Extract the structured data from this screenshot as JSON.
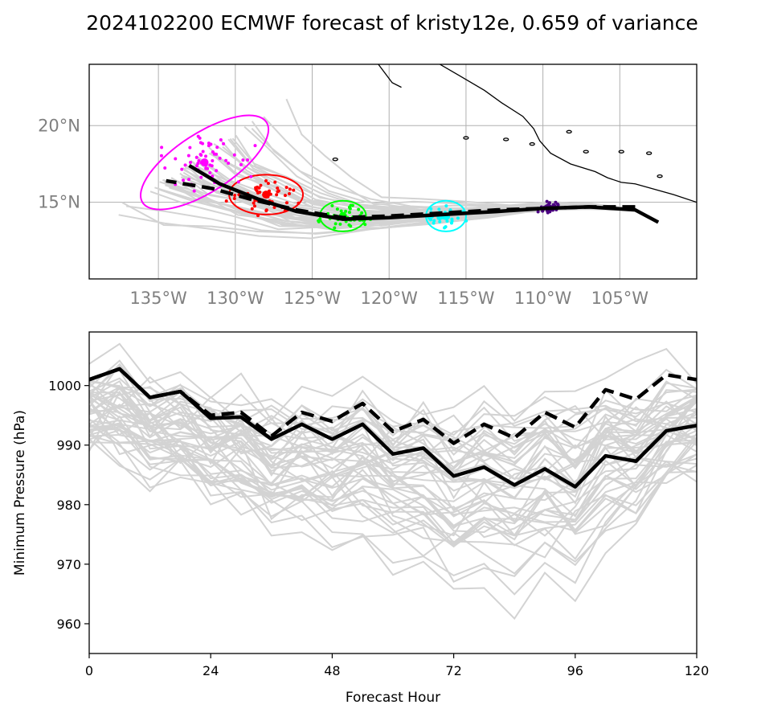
{
  "chart_data": [
    {
      "type": "line",
      "panel": "track-map",
      "title": "2024102200 ECMWF forecast of kristy12e, 0.659 of variance",
      "x_tick_labels": [
        "135°W",
        "130°W",
        "125°W",
        "120°W",
        "115°W",
        "110°W",
        "105°W"
      ],
      "x_ticks": [
        -135,
        -130,
        -125,
        -120,
        -115,
        -110,
        -105
      ],
      "y_tick_labels": [
        "15°N",
        "20°N"
      ],
      "y_ticks": [
        15,
        20
      ],
      "xlim": [
        -139.5,
        -100
      ],
      "ylim": [
        10,
        24
      ],
      "grid": true,
      "series": [
        {
          "style": "solid-black",
          "points": [
            [
              -102.5,
              13.7
            ],
            [
              -104,
              14.5
            ],
            [
              -107,
              14.7
            ],
            [
              -110,
              14.6
            ],
            [
              -113,
              14.4
            ],
            [
              -116.5,
              14.2
            ],
            [
              -120,
              14.0
            ],
            [
              -123,
              13.9
            ],
            [
              -126,
              14.4
            ],
            [
              -128.5,
              15.2
            ],
            [
              -131,
              16.2
            ],
            [
              -133,
              17.4
            ]
          ]
        },
        {
          "style": "dashed-black",
          "points": [
            [
              -104,
              14.7
            ],
            [
              -107,
              14.7
            ],
            [
              -110,
              14.6
            ],
            [
              -113,
              14.5
            ],
            [
              -116.5,
              14.3
            ],
            [
              -120,
              14.1
            ],
            [
              -123,
              14.0
            ],
            [
              -126,
              14.5
            ],
            [
              -129,
              15.2
            ],
            [
              -131.5,
              15.9
            ],
            [
              -134.5,
              16.4
            ]
          ]
        }
      ],
      "clusters": [
        {
          "color": "#4b0082",
          "center": [
            -109.6,
            14.6
          ],
          "spread": [
            0.5,
            0.3
          ],
          "n": 40,
          "ellipse": [
            0,
            0,
            0
          ]
        },
        {
          "color": "#00ffff",
          "center": [
            -116.3,
            14.1
          ],
          "spread": [
            0.9,
            0.5
          ],
          "n": 40,
          "ellipse": [
            1.3,
            1.0,
            0
          ]
        },
        {
          "color": "#00ff00",
          "center": [
            -123.0,
            14.1
          ],
          "spread": [
            1.2,
            0.6
          ],
          "n": 45,
          "ellipse": [
            1.5,
            1.0,
            0
          ]
        },
        {
          "color": "#ff0000",
          "center": [
            -128.0,
            15.5
          ],
          "spread": [
            1.7,
            0.9
          ],
          "n": 55,
          "ellipse": [
            2.4,
            1.3,
            0
          ]
        },
        {
          "color": "#ff00ff",
          "center": [
            -132.0,
            17.6
          ],
          "spread": [
            2.2,
            1.6
          ],
          "n": 60,
          "ellipse": [
            4.8,
            1.9,
            33
          ]
        }
      ],
      "coastline": [
        [
          [
            -120.7,
            24
          ],
          [
            -119.8,
            22.8
          ],
          [
            -119.2,
            22.5
          ]
        ],
        [
          [
            -116.7,
            24
          ],
          [
            -115.5,
            23.3
          ],
          [
            -113.8,
            22.3
          ],
          [
            -112.7,
            21.5
          ],
          [
            -111.3,
            20.6
          ],
          [
            -110.6,
            19.8
          ],
          [
            -110.2,
            19.0
          ],
          [
            -109.5,
            18.2
          ],
          [
            -108.2,
            17.5
          ],
          [
            -106.6,
            17.0
          ],
          [
            -105.8,
            16.6
          ],
          [
            -104.9,
            16.3
          ],
          [
            -104.0,
            16.2
          ],
          [
            -101.5,
            15.5
          ],
          [
            -100.0,
            15.0
          ]
        ]
      ],
      "islands": [
        [
          -115.0,
          19.2
        ],
        [
          -112.4,
          19.1
        ],
        [
          -110.7,
          18.8
        ],
        [
          -107.2,
          18.3
        ],
        [
          -104.9,
          18.3
        ],
        [
          -103.1,
          18.2
        ],
        [
          -102.4,
          16.7
        ],
        [
          -123.5,
          17.8
        ],
        [
          -108.3,
          19.6
        ]
      ]
    },
    {
      "type": "line",
      "panel": "pressure",
      "xlabel": "Forecast Hour",
      "ylabel": "Minimum Pressure (hPa)",
      "x_ticks": [
        0,
        24,
        48,
        72,
        96,
        120
      ],
      "y_ticks": [
        960,
        970,
        980,
        990,
        1000
      ],
      "xlim": [
        0,
        120
      ],
      "ylim": [
        955,
        1009
      ],
      "x": [
        0,
        6,
        12,
        18,
        24,
        30,
        36,
        42,
        48,
        54,
        60,
        66,
        72,
        78,
        84,
        90,
        96,
        102,
        108,
        114,
        120
      ],
      "series": [
        {
          "style": "solid-black",
          "values": [
            1001,
            1002.8,
            998,
            999,
            994.5,
            994.7,
            991,
            993.5,
            991,
            993.5,
            988.5,
            989.5,
            984.8,
            986.3,
            983.3,
            986,
            983,
            988.2,
            987.3,
            992.4,
            993.3
          ]
        },
        {
          "style": "dashed-black",
          "values": [
            1001,
            1002.8,
            998,
            999,
            995,
            995.5,
            991.5,
            995.5,
            994,
            997,
            992.3,
            994.3,
            990.3,
            993.5,
            991.2,
            995.5,
            993,
            999.3,
            997.7,
            1001.8,
            1001
          ]
        }
      ],
      "ensemble_note": "50 gray ensemble member traces"
    }
  ]
}
